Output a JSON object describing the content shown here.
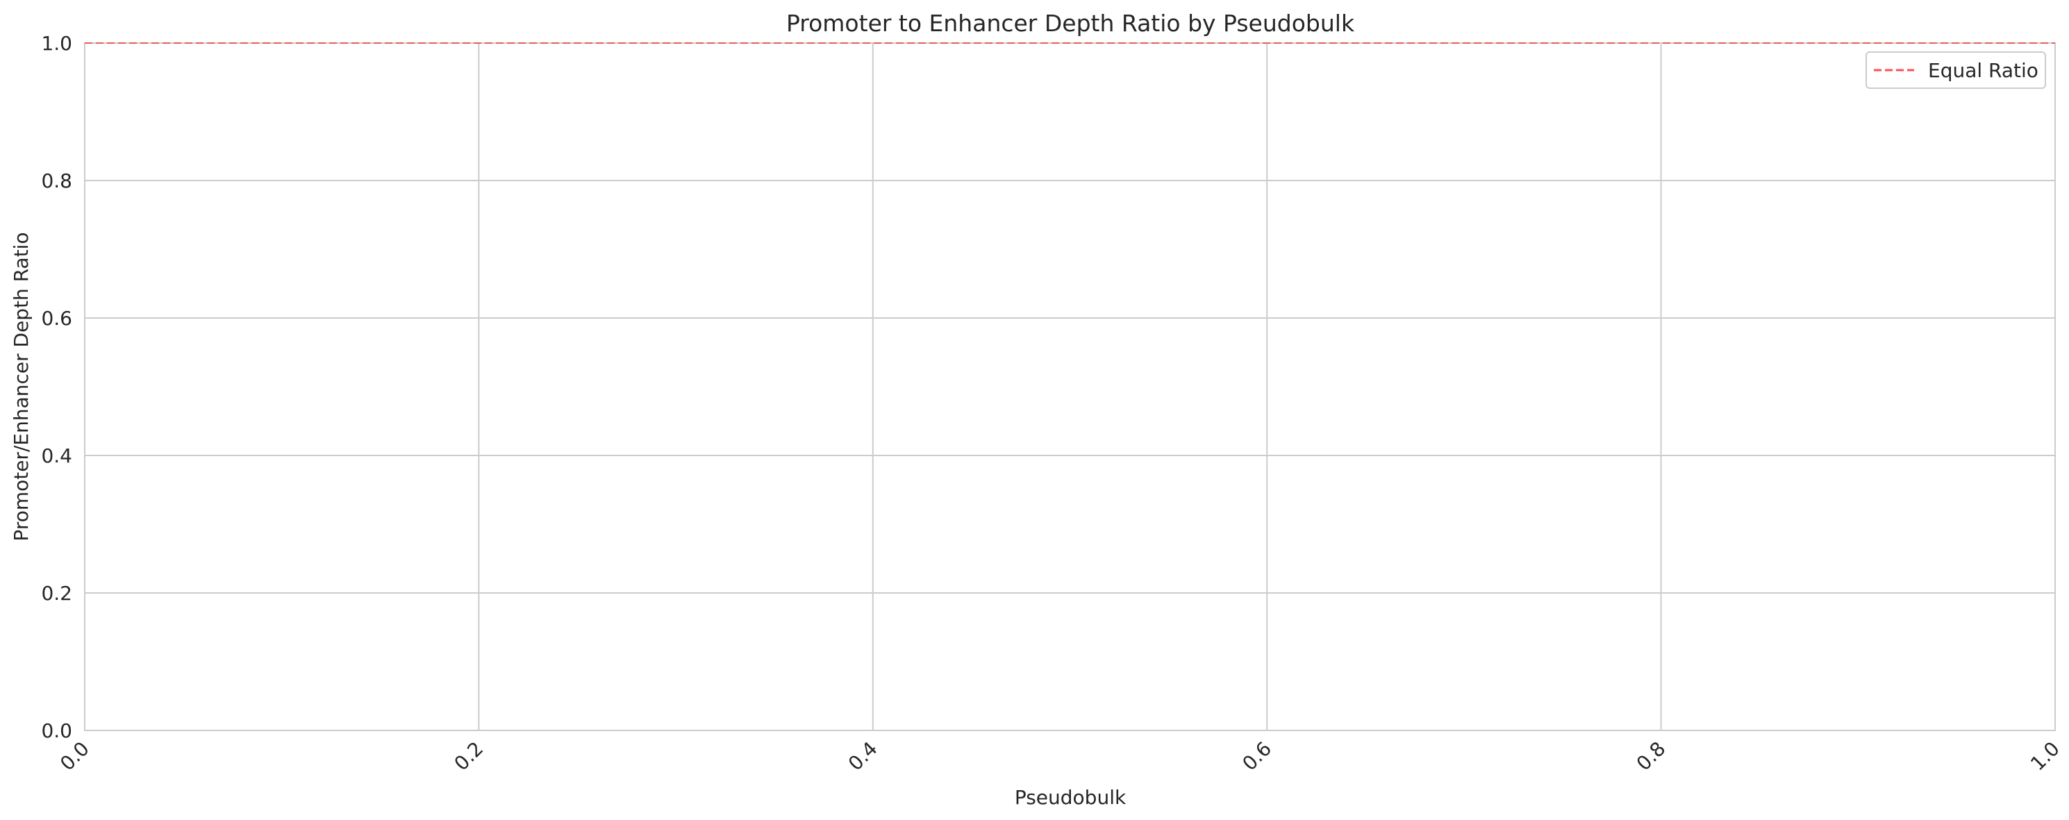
{
  "chart_data": {
    "type": "line",
    "title": "Promoter to Enhancer Depth Ratio by Pseudobulk",
    "xlabel": "Pseudobulk",
    "ylabel": "Promoter/Enhancer Depth Ratio",
    "xlim": [
      0.0,
      1.0
    ],
    "ylim": [
      0.0,
      1.0
    ],
    "x_ticks": [
      "0.0",
      "0.2",
      "0.4",
      "0.6",
      "0.8",
      "1.0"
    ],
    "y_ticks": [
      "0.0",
      "0.2",
      "0.4",
      "0.6",
      "0.8",
      "1.0"
    ],
    "x_tick_rotation": 45,
    "grid": true,
    "legend_placement": "top-right",
    "series": [],
    "reference_lines": [
      {
        "name": "Equal Ratio",
        "orientation": "horizontal",
        "y": 1.0,
        "style": "dashed",
        "color": "#ff0000"
      }
    ]
  }
}
